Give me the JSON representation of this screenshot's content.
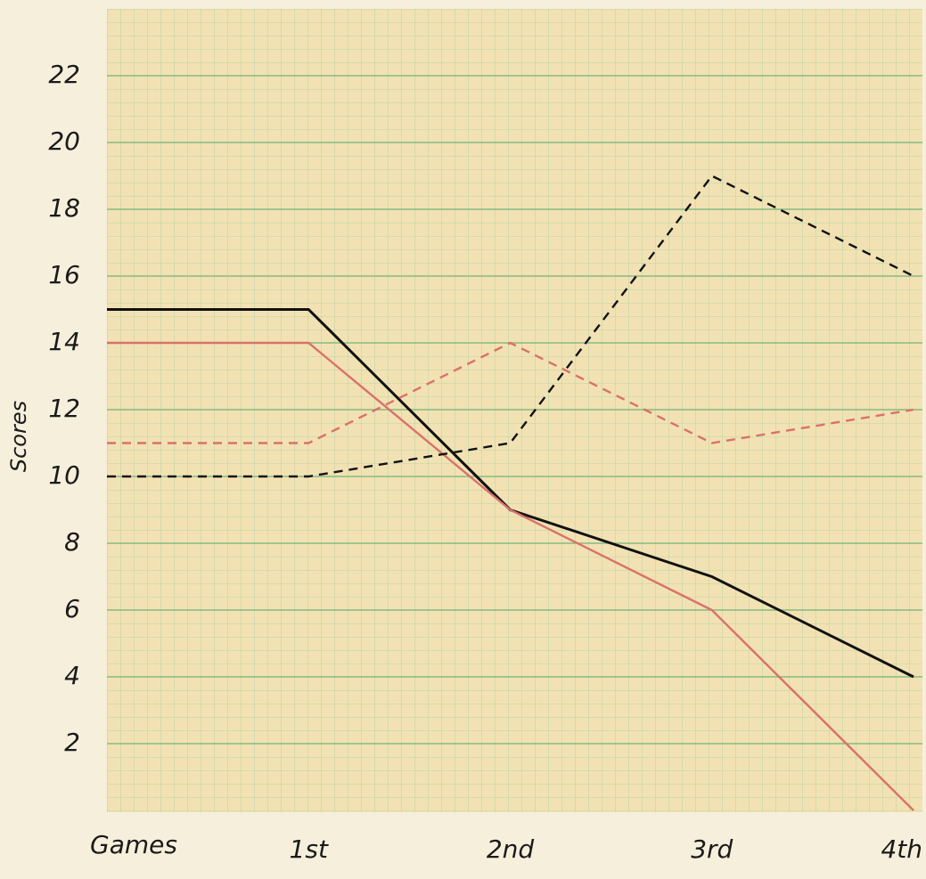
{
  "chart_data": {
    "type": "line",
    "x_label": "Games",
    "y_label": "Scores",
    "categories": [
      null,
      "1st",
      "2nd",
      "3rd",
      "4th"
    ],
    "series": [
      {
        "color": "#111111",
        "style": "solid",
        "values": [
          15,
          15,
          9,
          7,
          4
        ]
      },
      {
        "color": "#d9716b",
        "style": "solid",
        "values": [
          14,
          14,
          9,
          6,
          0
        ]
      },
      {
        "color": "#111111",
        "style": "dashed",
        "values": [
          10,
          10,
          11,
          19,
          16
        ]
      },
      {
        "color": "#d9716b",
        "style": "dashed",
        "values": [
          11,
          11,
          14,
          11,
          12
        ]
      }
    ],
    "ylim": [
      0,
      24
    ],
    "yticks": [
      2,
      4,
      6,
      8,
      10,
      12,
      14,
      16,
      18,
      20,
      22
    ],
    "grid": true
  }
}
